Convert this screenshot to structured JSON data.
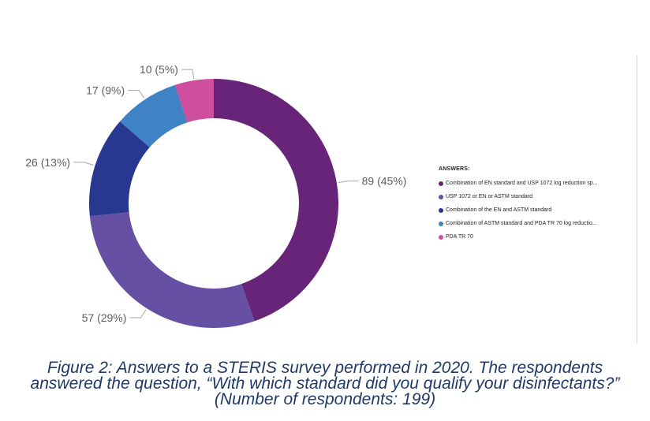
{
  "chart_data": {
    "type": "pie",
    "style": "donut",
    "legend_title": "ANSWERS:",
    "legend_position": "right",
    "slices": [
      {
        "label": "Combination of EN standard and USP 1072 log reduction sp...",
        "value": 89,
        "percent": 45,
        "display": "89 (45%)",
        "color": "#682478"
      },
      {
        "label": "USP 1072 or EN  or ASTM standard",
        "value": 57,
        "percent": 29,
        "display": "57 (29%)",
        "color": "#6650a4"
      },
      {
        "label": "Combination of the EN and ASTM standard",
        "value": 26,
        "percent": 13,
        "display": "26 (13%)",
        "color": "#283891"
      },
      {
        "label": "Combination of ASTM standard and PDA TR 70 log reductio...",
        "value": 17,
        "percent": 9,
        "display": "17 (9%)",
        "color": "#3f82c6"
      },
      {
        "label": "PDA TR 70",
        "value": 10,
        "percent": 5,
        "display": "10 (5%)",
        "color": "#cf4f9f"
      }
    ]
  },
  "caption": "Figure 2: Answers to a STERIS survey performed in 2020. The respondents answered the question, “With which standard did you qualify your disinfectants?” (Number of respondents: 199)"
}
